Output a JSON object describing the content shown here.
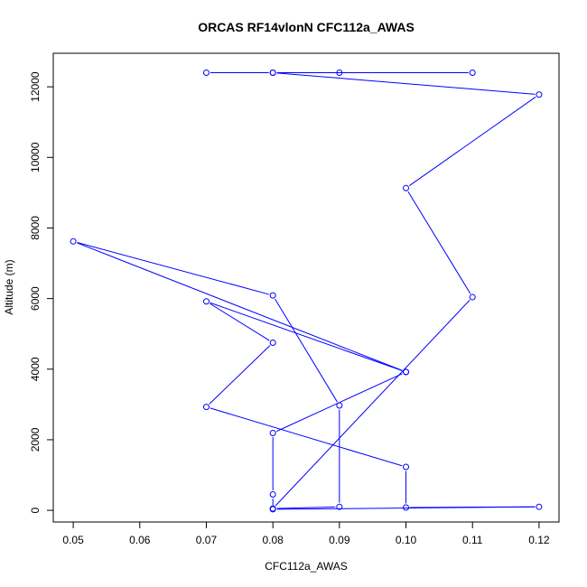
{
  "chart_data": {
    "type": "line",
    "title": "ORCAS RF14vlonN CFC112a_AWAS",
    "xlabel": "CFC112a_AWAS",
    "ylabel": "Altitude (m)",
    "xlim": [
      0.047,
      0.123
    ],
    "ylim": [
      -330,
      12950
    ],
    "x_ticks": [
      0.05,
      0.06,
      0.07,
      0.08,
      0.09,
      0.1,
      0.11,
      0.12
    ],
    "x_tick_labels": [
      "0.05",
      "0.06",
      "0.07",
      "0.08",
      "0.09",
      "0.10",
      "0.11",
      "0.12"
    ],
    "y_ticks": [
      0,
      2000,
      4000,
      6000,
      8000,
      10000,
      12000
    ],
    "y_tick_labels": [
      "0",
      "2000",
      "4000",
      "6000",
      "8000",
      "10000",
      "12000"
    ],
    "grid": false,
    "series": [
      {
        "color": "#0000ff",
        "marker": "open-circle",
        "points": [
          {
            "x": 0.07,
            "y": 12400
          },
          {
            "x": 0.08,
            "y": 12400
          },
          {
            "x": 0.09,
            "y": 12400
          },
          {
            "x": 0.11,
            "y": 12400
          },
          {
            "x": 0.08,
            "y": 12400
          },
          {
            "x": 0.12,
            "y": 11780
          },
          {
            "x": 0.1,
            "y": 9130
          },
          {
            "x": 0.11,
            "y": 6040
          },
          {
            "x": 0.08,
            "y": 50
          },
          {
            "x": 0.09,
            "y": 100
          },
          {
            "x": 0.09,
            "y": 2970
          },
          {
            "x": 0.08,
            "y": 6090
          },
          {
            "x": 0.05,
            "y": 7620
          },
          {
            "x": 0.1,
            "y": 3920
          },
          {
            "x": 0.07,
            "y": 5920
          },
          {
            "x": 0.08,
            "y": 4750
          },
          {
            "x": 0.07,
            "y": 2930
          },
          {
            "x": 0.1,
            "y": 1230
          },
          {
            "x": 0.1,
            "y": 80
          },
          {
            "x": 0.12,
            "y": 100
          },
          {
            "x": 0.08,
            "y": 30
          },
          {
            "x": 0.08,
            "y": 450
          },
          {
            "x": 0.08,
            "y": 2190
          },
          {
            "x": 0.1,
            "y": 3920
          }
        ]
      }
    ]
  }
}
